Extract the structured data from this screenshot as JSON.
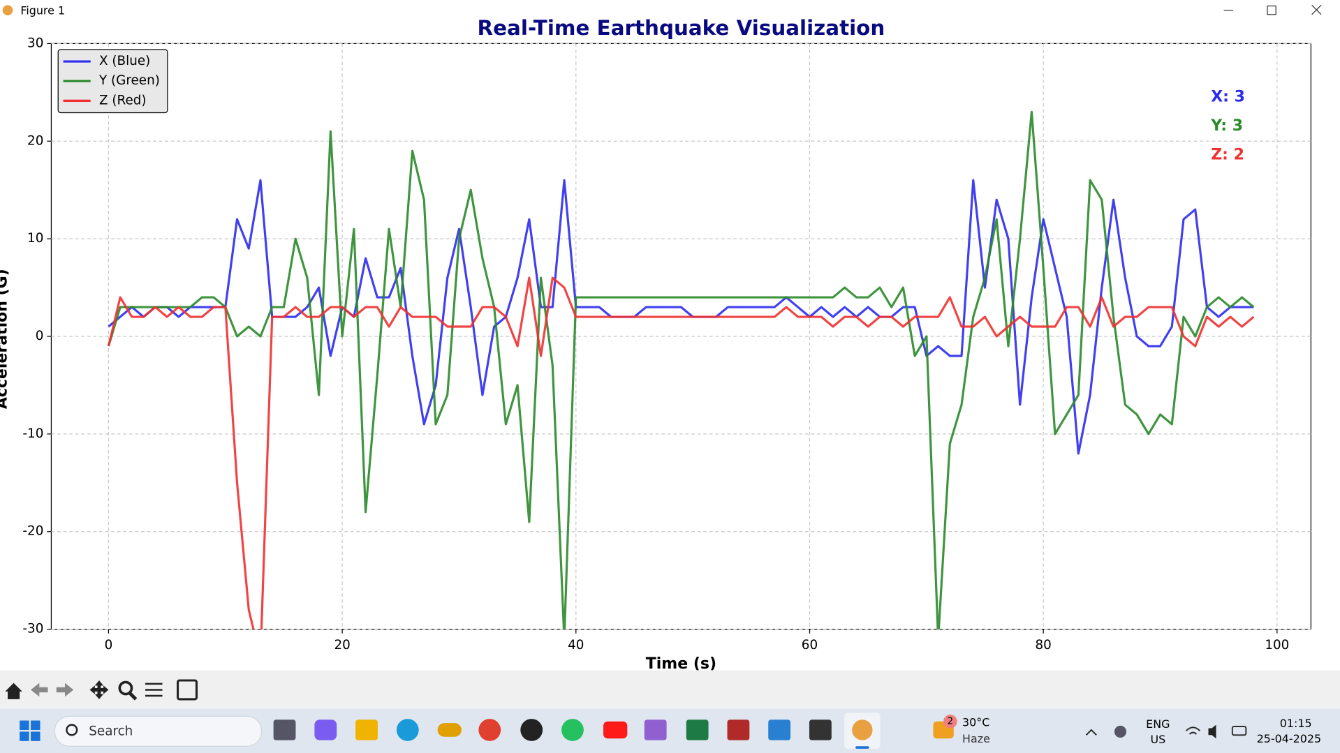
{
  "window": {
    "title": "Figure 1"
  },
  "chart_data": {
    "type": "line",
    "title": "Real-Time Earthquake Visualization",
    "x_label": "Time (s)",
    "y_label": "Acceleration (G)",
    "x": [
      0,
      1,
      2,
      3,
      4,
      5,
      6,
      7,
      8,
      9,
      10,
      11,
      12,
      13,
      14,
      15,
      16,
      17,
      18,
      19,
      20,
      21,
      22,
      23,
      24,
      25,
      26,
      27,
      28,
      29,
      30,
      31,
      32,
      33,
      34,
      35,
      36,
      37,
      38,
      39,
      40,
      41,
      42,
      43,
      44,
      45,
      46,
      47,
      48,
      49,
      50,
      51,
      52,
      53,
      54,
      55,
      56,
      57,
      58,
      59,
      60,
      61,
      62,
      63,
      64,
      65,
      66,
      67,
      68,
      69,
      70,
      71,
      72,
      73,
      74,
      75,
      76,
      77,
      78,
      79,
      80,
      81,
      82,
      83,
      84,
      85,
      86,
      87,
      88,
      89,
      90,
      91,
      92,
      93,
      94,
      95,
      96,
      97,
      98
    ],
    "series": [
      {
        "name": "X (Blue)",
        "color": "#2b2bf0",
        "values": [
          1,
          2,
          3,
          2,
          3,
          3,
          2,
          3,
          3,
          3,
          3,
          12,
          9,
          16,
          2,
          2,
          2,
          3,
          5,
          -2,
          3,
          2,
          8,
          4,
          4,
          7,
          -2,
          -9,
          -5,
          6,
          11,
          3,
          -6,
          1,
          2,
          6,
          12,
          3,
          3,
          16,
          3,
          3,
          3,
          2,
          2,
          2,
          3,
          3,
          3,
          3,
          2,
          2,
          2,
          3,
          3,
          3,
          3,
          3,
          4,
          3,
          2,
          3,
          2,
          3,
          2,
          3,
          2,
          2,
          3,
          3,
          -2,
          -1,
          -2,
          -2,
          16,
          5,
          14,
          10,
          -7,
          4,
          12,
          7,
          2,
          -12,
          -6,
          5,
          14,
          6,
          0,
          -1,
          -1,
          1,
          12,
          13,
          3,
          2,
          3,
          3,
          3
        ]
      },
      {
        "name": "Y (Green)",
        "color": "#2a8a2a",
        "values": [
          -1,
          3,
          3,
          3,
          3,
          3,
          3,
          3,
          4,
          4,
          3,
          0,
          1,
          0,
          3,
          3,
          10,
          6,
          -6,
          21,
          0,
          11,
          -18,
          -4,
          11,
          3,
          19,
          14,
          -9,
          -6,
          10,
          15,
          8,
          3,
          -9,
          -5,
          -19,
          6,
          -3,
          -31,
          4,
          4,
          4,
          4,
          4,
          4,
          4,
          4,
          4,
          4,
          4,
          4,
          4,
          4,
          4,
          4,
          4,
          4,
          4,
          4,
          4,
          4,
          4,
          5,
          4,
          4,
          5,
          3,
          5,
          -2,
          0,
          -31,
          -11,
          -7,
          2,
          6,
          12,
          -1,
          10,
          23,
          7,
          -10,
          -8,
          -6,
          16,
          14,
          2,
          -7,
          -8,
          -10,
          -8,
          -9,
          2,
          0,
          3,
          4,
          3,
          4,
          3
        ]
      },
      {
        "name": "Z (Red)",
        "color": "#f03030",
        "values": [
          -1,
          4,
          2,
          2,
          3,
          2,
          3,
          2,
          2,
          3,
          3,
          -15,
          -28,
          -33,
          2,
          2,
          3,
          2,
          2,
          3,
          3,
          2,
          3,
          3,
          1,
          3,
          2,
          2,
          2,
          1,
          1,
          1,
          3,
          3,
          2,
          -1,
          6,
          -2,
          6,
          5,
          2,
          2,
          2,
          2,
          2,
          2,
          2,
          2,
          2,
          2,
          2,
          2,
          2,
          2,
          2,
          2,
          2,
          2,
          3,
          2,
          2,
          2,
          1,
          2,
          2,
          1,
          2,
          2,
          1,
          2,
          2,
          2,
          4,
          1,
          1,
          2,
          0,
          1,
          2,
          1,
          1,
          1,
          3,
          3,
          1,
          4,
          1,
          2,
          2,
          3,
          3,
          3,
          0,
          -1,
          2,
          1,
          2,
          1,
          2
        ]
      }
    ],
    "xlim": [
      -4.9,
      102.9
    ],
    "xticks": [
      0,
      20,
      40,
      60,
      80,
      100
    ],
    "ylim": [
      -30,
      30
    ],
    "yticks": [
      -30,
      -20,
      -10,
      0,
      10,
      20,
      30
    ],
    "grid": true,
    "legend": "upper left",
    "annotations": [
      {
        "text": "X: 3",
        "color": "#2b2bf0"
      },
      {
        "text": "Y: 3",
        "color": "#2a8a2a"
      },
      {
        "text": "Z: 2",
        "color": "#f03030"
      }
    ]
  },
  "taskbar": {
    "search": "Search",
    "weather_badge": "2",
    "temperature": "30°C",
    "condition": "Haze",
    "language": "ENG",
    "region": "US",
    "time": "01:15",
    "date": "25-04-2025"
  }
}
